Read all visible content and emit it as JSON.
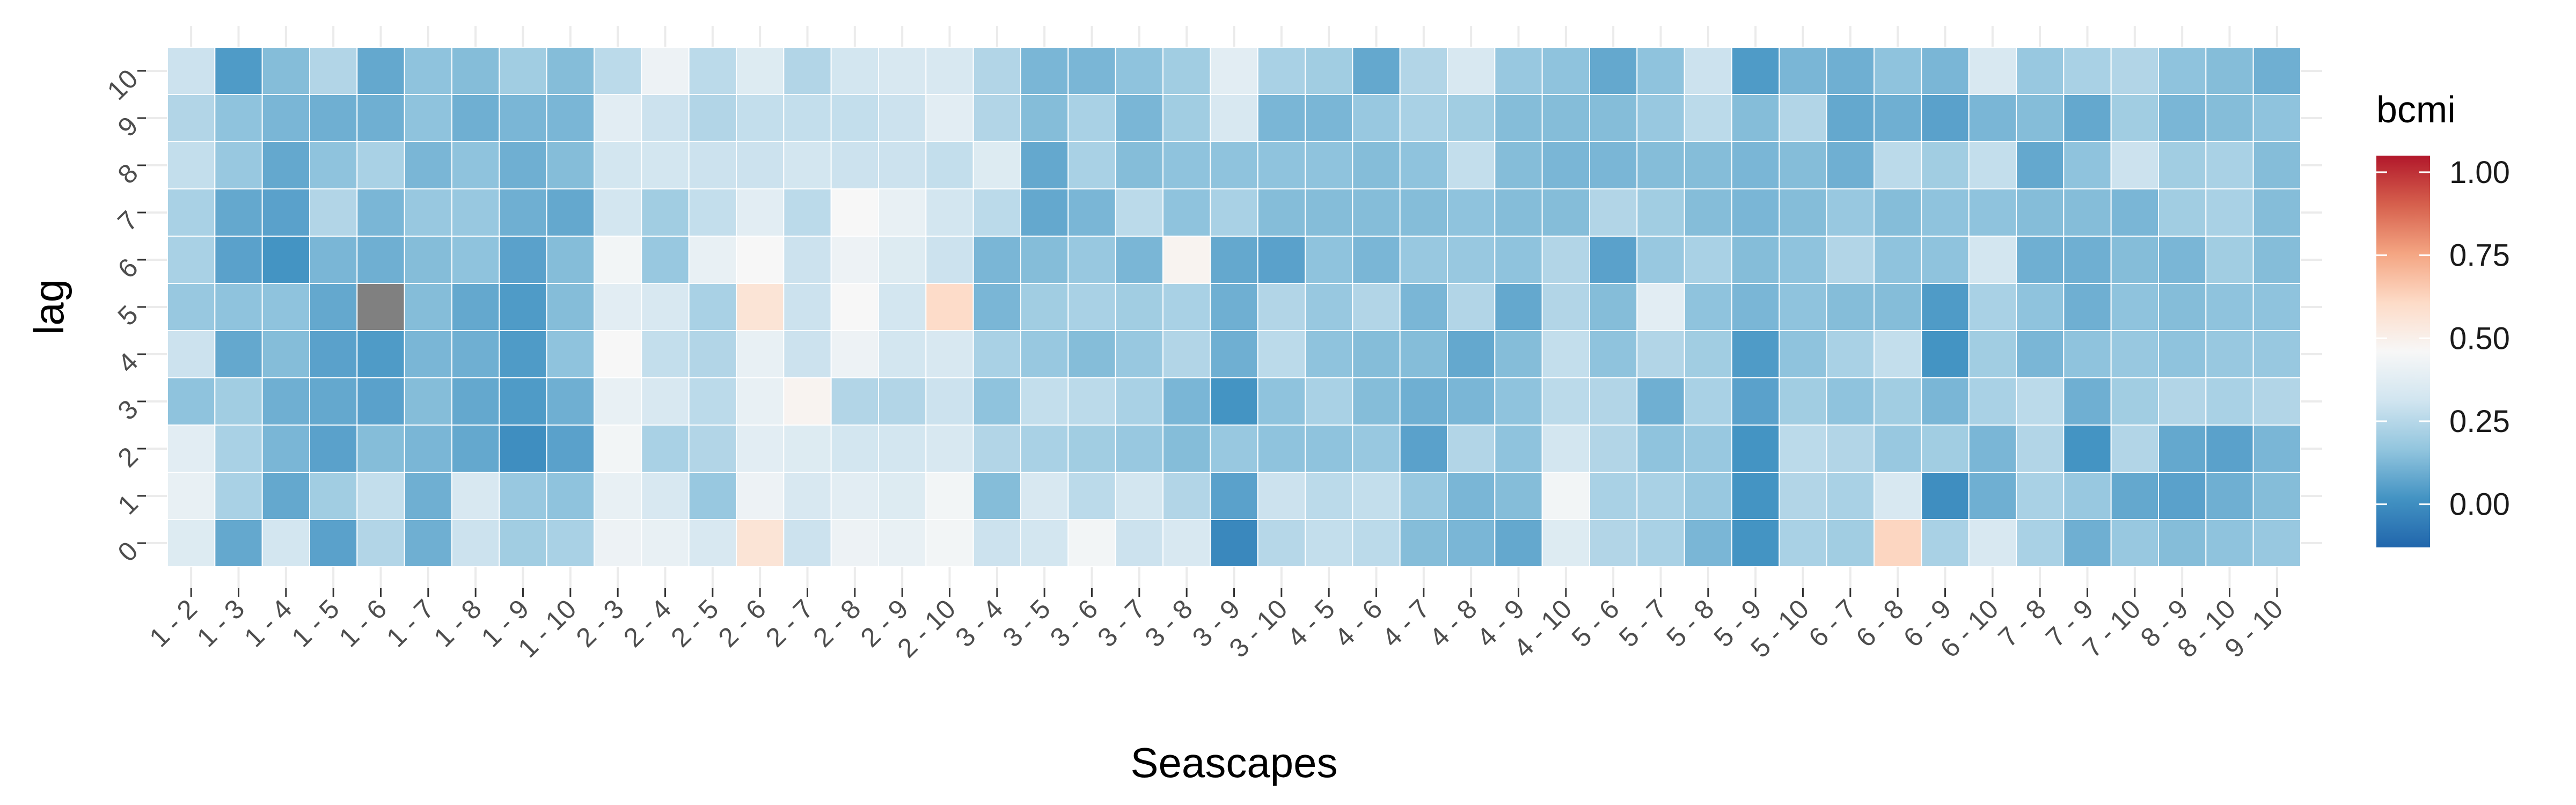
{
  "chart_data": {
    "type": "heatmap",
    "xlabel": "Seascapes",
    "ylabel": "lag",
    "categories": [
      "1 - 2",
      "1 - 3",
      "1 - 4",
      "1 - 5",
      "1 - 6",
      "1 - 7",
      "1 - 8",
      "1 - 9",
      "1 - 10",
      "2 - 3",
      "2 - 4",
      "2 - 5",
      "2 - 6",
      "2 - 7",
      "2 - 8",
      "2 - 9",
      "2 - 10",
      "3 - 4",
      "3 - 5",
      "3 - 6",
      "3 - 7",
      "3 - 8",
      "3 - 9",
      "3 - 10",
      "4 - 5",
      "4 - 6",
      "4 - 7",
      "4 - 8",
      "4 - 9",
      "4 - 10",
      "5 - 6",
      "5 - 7",
      "5 - 8",
      "5 - 9",
      "5 - 10",
      "6 - 7",
      "6 - 8",
      "6 - 9",
      "6 - 10",
      "7 - 8",
      "7 - 9",
      "7 - 10",
      "8 - 9",
      "8 - 10",
      "9 - 10"
    ],
    "y": [
      "0",
      "1",
      "2",
      "3",
      "4",
      "5",
      "6",
      "7",
      "8",
      "9",
      "10"
    ],
    "legend": {
      "title": "bcmi",
      "ticks": [
        "1.00",
        "0.75",
        "0.50",
        "0.25",
        "0.00"
      ],
      "tick_values": [
        1.0,
        0.75,
        0.5,
        0.25,
        0.0
      ],
      "range": [
        -0.13,
        1.05
      ],
      "colors": [
        "#2166ac",
        "#4393c3",
        "#92c5de",
        "#d1e5f0",
        "#f7f7f7",
        "#fddbc7",
        "#f4a582",
        "#d6604d",
        "#b2182b"
      ],
      "missing_color": "#808080",
      "position": "right"
    },
    "values": [
      [
        0.36,
        0.08,
        0.32,
        0.06,
        0.24,
        0.1,
        0.3,
        0.2,
        0.22,
        0.42,
        0.4,
        0.34,
        0.56,
        0.3,
        0.42,
        0.4,
        0.44,
        0.3,
        0.32,
        0.44,
        0.3,
        0.34,
        -0.02,
        0.25,
        0.28,
        0.26,
        0.14,
        0.12,
        0.08,
        0.36,
        0.24,
        0.22,
        0.12,
        0.02,
        0.22,
        0.2,
        0.62,
        0.22,
        0.34,
        0.22,
        0.1,
        0.18,
        0.14,
        0.16,
        0.18
      ],
      [
        0.4,
        0.22,
        0.08,
        0.2,
        0.28,
        0.1,
        0.34,
        0.18,
        0.16,
        0.4,
        0.34,
        0.18,
        0.42,
        0.34,
        0.38,
        0.36,
        0.44,
        0.14,
        0.34,
        0.26,
        0.32,
        0.24,
        0.06,
        0.3,
        0.26,
        0.28,
        0.18,
        0.12,
        0.14,
        0.44,
        0.22,
        0.22,
        0.18,
        0.02,
        0.24,
        0.22,
        0.34,
        0.0,
        0.1,
        0.22,
        0.18,
        0.08,
        0.06,
        0.1,
        0.14
      ],
      [
        0.38,
        0.22,
        0.12,
        0.06,
        0.14,
        0.12,
        0.08,
        0.0,
        0.06,
        0.44,
        0.22,
        0.24,
        0.38,
        0.36,
        0.32,
        0.32,
        0.34,
        0.24,
        0.22,
        0.2,
        0.18,
        0.14,
        0.18,
        0.16,
        0.16,
        0.18,
        0.06,
        0.24,
        0.16,
        0.32,
        0.24,
        0.16,
        0.18,
        0.02,
        0.26,
        0.24,
        0.18,
        0.2,
        0.12,
        0.24,
        0.02,
        0.24,
        0.08,
        0.06,
        0.12
      ],
      [
        0.16,
        0.2,
        0.1,
        0.08,
        0.06,
        0.14,
        0.08,
        0.04,
        0.1,
        0.4,
        0.34,
        0.26,
        0.4,
        0.48,
        0.24,
        0.24,
        0.3,
        0.16,
        0.28,
        0.26,
        0.22,
        0.12,
        0.02,
        0.16,
        0.22,
        0.14,
        0.1,
        0.12,
        0.16,
        0.26,
        0.24,
        0.1,
        0.22,
        0.06,
        0.2,
        0.16,
        0.2,
        0.12,
        0.22,
        0.26,
        0.1,
        0.2,
        0.24,
        0.22,
        0.24
      ],
      [
        0.3,
        0.08,
        0.14,
        0.06,
        0.04,
        0.12,
        0.1,
        0.04,
        0.16,
        0.46,
        0.28,
        0.24,
        0.4,
        0.3,
        0.42,
        0.32,
        0.34,
        0.22,
        0.18,
        0.14,
        0.18,
        0.24,
        0.1,
        0.26,
        0.16,
        0.14,
        0.14,
        0.08,
        0.14,
        0.28,
        0.16,
        0.24,
        0.2,
        0.04,
        0.16,
        0.22,
        0.28,
        0.02,
        0.2,
        0.12,
        0.16,
        0.18,
        0.16,
        0.18,
        0.18
      ],
      [
        0.18,
        0.16,
        0.16,
        0.08,
        null,
        0.14,
        0.08,
        0.04,
        0.14,
        0.38,
        0.34,
        0.22,
        0.56,
        0.3,
        0.46,
        0.32,
        0.6,
        0.12,
        0.2,
        0.22,
        0.2,
        0.22,
        0.1,
        0.24,
        0.18,
        0.24,
        0.12,
        0.24,
        0.08,
        0.24,
        0.14,
        0.38,
        0.16,
        0.12,
        0.16,
        0.14,
        0.14,
        0.04,
        0.22,
        0.16,
        0.1,
        0.16,
        0.14,
        0.16,
        0.16
      ],
      [
        0.22,
        0.06,
        0.02,
        0.12,
        0.1,
        0.14,
        0.16,
        0.06,
        0.14,
        0.44,
        0.18,
        0.4,
        0.46,
        0.3,
        0.42,
        0.36,
        0.3,
        0.12,
        0.14,
        0.18,
        0.12,
        0.48,
        0.08,
        0.06,
        0.16,
        0.12,
        0.18,
        0.18,
        0.16,
        0.24,
        0.06,
        0.18,
        0.22,
        0.14,
        0.16,
        0.24,
        0.16,
        0.16,
        0.32,
        0.1,
        0.1,
        0.14,
        0.12,
        0.2,
        0.14
      ],
      [
        0.22,
        0.08,
        0.06,
        0.24,
        0.12,
        0.18,
        0.18,
        0.1,
        0.08,
        0.32,
        0.2,
        0.28,
        0.38,
        0.26,
        0.46,
        0.4,
        0.32,
        0.26,
        0.08,
        0.12,
        0.26,
        0.16,
        0.22,
        0.14,
        0.14,
        0.14,
        0.14,
        0.16,
        0.14,
        0.14,
        0.24,
        0.2,
        0.14,
        0.12,
        0.14,
        0.18,
        0.14,
        0.16,
        0.16,
        0.14,
        0.14,
        0.12,
        0.2,
        0.22,
        0.14
      ],
      [
        0.28,
        0.18,
        0.08,
        0.16,
        0.22,
        0.12,
        0.16,
        0.1,
        0.14,
        0.32,
        0.32,
        0.3,
        0.3,
        0.32,
        0.3,
        0.3,
        0.28,
        0.36,
        0.08,
        0.22,
        0.14,
        0.16,
        0.16,
        0.16,
        0.16,
        0.14,
        0.16,
        0.28,
        0.14,
        0.12,
        0.12,
        0.14,
        0.14,
        0.12,
        0.14,
        0.1,
        0.26,
        0.2,
        0.28,
        0.08,
        0.16,
        0.3,
        0.2,
        0.22,
        0.14
      ],
      [
        0.24,
        0.16,
        0.12,
        0.1,
        0.1,
        0.16,
        0.1,
        0.12,
        0.12,
        0.38,
        0.3,
        0.24,
        0.28,
        0.28,
        0.28,
        0.3,
        0.38,
        0.24,
        0.14,
        0.22,
        0.12,
        0.2,
        0.34,
        0.12,
        0.12,
        0.18,
        0.22,
        0.2,
        0.14,
        0.14,
        0.14,
        0.18,
        0.26,
        0.14,
        0.24,
        0.08,
        0.1,
        0.06,
        0.12,
        0.14,
        0.08,
        0.2,
        0.12,
        0.14,
        0.16
      ],
      [
        0.3,
        0.04,
        0.14,
        0.24,
        0.08,
        0.16,
        0.14,
        0.2,
        0.14,
        0.26,
        0.42,
        0.26,
        0.36,
        0.24,
        0.32,
        0.34,
        0.34,
        0.24,
        0.12,
        0.12,
        0.16,
        0.2,
        0.38,
        0.22,
        0.2,
        0.08,
        0.24,
        0.34,
        0.18,
        0.16,
        0.08,
        0.16,
        0.3,
        0.04,
        0.12,
        0.1,
        0.16,
        0.12,
        0.34,
        0.18,
        0.22,
        0.24,
        0.16,
        0.14,
        0.1
      ]
    ]
  }
}
